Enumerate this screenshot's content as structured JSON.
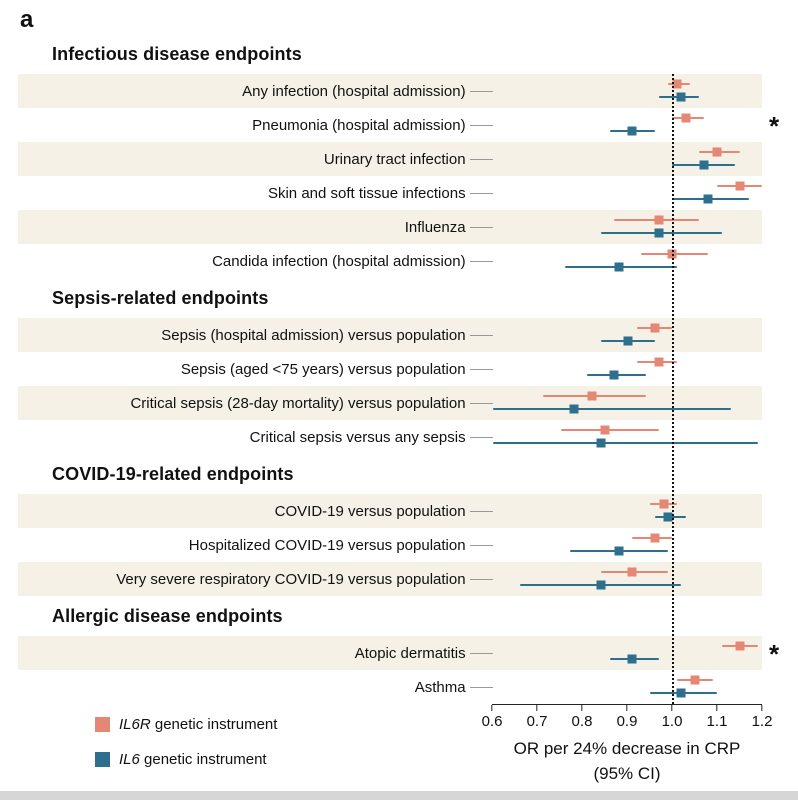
{
  "panel_label": "a",
  "star_symbol": "*",
  "colors": {
    "il6r": "#e58775",
    "il6": "#2e6f8e",
    "stripe": "#f5f1e6"
  },
  "legend": [
    {
      "gene": "IL6R",
      "rest": " genetic instrument",
      "color_key": "il6r"
    },
    {
      "gene": "IL6",
      "rest": " genetic instrument",
      "color_key": "il6"
    }
  ],
  "axis": {
    "min": 0.6,
    "max": 1.2,
    "reference_line": 1.0,
    "ticks": [
      "0.6",
      "0.7",
      "0.8",
      "0.9",
      "1.0",
      "1.1",
      "1.2"
    ],
    "title_line1": "OR per 24% decrease in CRP",
    "title_line2": "(95% CI)"
  },
  "chart_data": {
    "type": "forest",
    "x_scale": "odds ratio",
    "series_names": [
      "IL6R genetic instrument",
      "IL6 genetic instrument"
    ],
    "sections": [
      {
        "title": "Infectious disease endpoints",
        "rows": [
          {
            "label": "Any infection (hospital admission)",
            "il6r": {
              "or": 1.01,
              "lo": 0.99,
              "hi": 1.04
            },
            "il6": {
              "or": 1.02,
              "lo": 0.97,
              "hi": 1.06
            },
            "star": false
          },
          {
            "label": "Pneumonia (hospital admission)",
            "il6r": {
              "or": 1.03,
              "lo": 1.0,
              "hi": 1.07
            },
            "il6": {
              "or": 0.91,
              "lo": 0.86,
              "hi": 0.96
            },
            "star": true
          },
          {
            "label": "Urinary tract infection",
            "il6r": {
              "or": 1.1,
              "lo": 1.06,
              "hi": 1.15
            },
            "il6": {
              "or": 1.07,
              "lo": 1.0,
              "hi": 1.14
            },
            "star": false
          },
          {
            "label": "Skin and soft tissue infections",
            "il6r": {
              "or": 1.15,
              "lo": 1.1,
              "hi": 1.2
            },
            "il6": {
              "or": 1.08,
              "lo": 1.0,
              "hi": 1.17
            },
            "star": false
          },
          {
            "label": "Influenza",
            "il6r": {
              "or": 0.97,
              "lo": 0.87,
              "hi": 1.06
            },
            "il6": {
              "or": 0.97,
              "lo": 0.84,
              "hi": 1.11
            },
            "star": false
          },
          {
            "label": "Candida infection (hospital admission)",
            "il6r": {
              "or": 1.0,
              "lo": 0.93,
              "hi": 1.08
            },
            "il6": {
              "or": 0.88,
              "lo": 0.76,
              "hi": 1.01
            },
            "star": false
          }
        ]
      },
      {
        "title": "Sepsis-related endpoints",
        "rows": [
          {
            "label": "Sepsis (hospital admission) versus population",
            "il6r": {
              "or": 0.96,
              "lo": 0.92,
              "hi": 1.0
            },
            "il6": {
              "or": 0.9,
              "lo": 0.84,
              "hi": 0.96
            },
            "star": false
          },
          {
            "label": "Sepsis (aged <75 years) versus population",
            "il6r": {
              "or": 0.97,
              "lo": 0.92,
              "hi": 1.01
            },
            "il6": {
              "or": 0.87,
              "lo": 0.81,
              "hi": 0.94
            },
            "star": false
          },
          {
            "label": "Critical sepsis (28-day mortality) versus population",
            "il6r": {
              "or": 0.82,
              "lo": 0.71,
              "hi": 0.94
            },
            "il6": {
              "or": 0.78,
              "lo": 0.6,
              "hi": 1.13
            },
            "star": false
          },
          {
            "label": "Critical sepsis versus any sepsis",
            "il6r": {
              "or": 0.85,
              "lo": 0.75,
              "hi": 0.97
            },
            "il6": {
              "or": 0.84,
              "lo": 0.6,
              "hi": 1.19
            },
            "star": false
          }
        ]
      },
      {
        "title": "COVID-19-related endpoints",
        "rows": [
          {
            "label": "COVID-19 versus population",
            "il6r": {
              "or": 0.98,
              "lo": 0.95,
              "hi": 1.01
            },
            "il6": {
              "or": 0.99,
              "lo": 0.96,
              "hi": 1.03
            },
            "star": false
          },
          {
            "label": "Hospitalized COVID-19 versus population",
            "il6r": {
              "or": 0.96,
              "lo": 0.91,
              "hi": 1.0
            },
            "il6": {
              "or": 0.88,
              "lo": 0.77,
              "hi": 0.99
            },
            "star": false
          },
          {
            "label": "Very severe respiratory COVID-19 versus population",
            "il6r": {
              "or": 0.91,
              "lo": 0.84,
              "hi": 0.99
            },
            "il6": {
              "or": 0.84,
              "lo": 0.66,
              "hi": 1.02
            },
            "star": false
          }
        ]
      },
      {
        "title": "Allergic disease endpoints",
        "rows": [
          {
            "label": "Atopic dermatitis",
            "il6r": {
              "or": 1.15,
              "lo": 1.11,
              "hi": 1.19
            },
            "il6": {
              "or": 0.91,
              "lo": 0.86,
              "hi": 0.97
            },
            "star": true
          },
          {
            "label": "Asthma",
            "il6r": {
              "or": 1.05,
              "lo": 1.01,
              "hi": 1.09
            },
            "il6": {
              "or": 1.02,
              "lo": 0.95,
              "hi": 1.1
            },
            "star": false
          }
        ]
      }
    ]
  }
}
